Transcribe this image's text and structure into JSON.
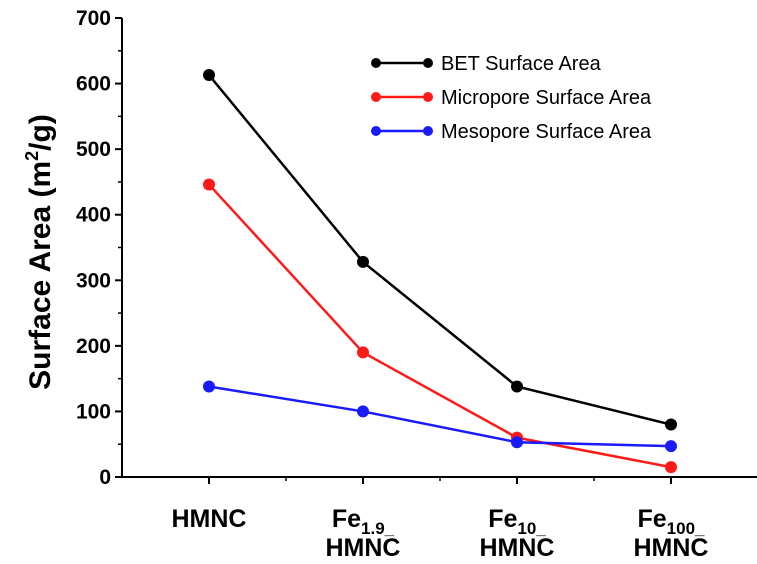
{
  "chart_data": {
    "type": "line",
    "categories": [
      {
        "main": "HMNC",
        "sub": "",
        "line2": ""
      },
      {
        "main": "Fe",
        "sub": "1.9_",
        "line2": "HMNC"
      },
      {
        "main": "Fe",
        "sub": "10_",
        "line2": "HMNC"
      },
      {
        "main": "Fe",
        "sub": "100_",
        "line2": "HMNC"
      }
    ],
    "series": [
      {
        "name": "BET Surface Area",
        "color": "#000000",
        "values": [
          613,
          328,
          138,
          80
        ]
      },
      {
        "name": "Micropore Surface Area",
        "color": "#ff1a1a",
        "values": [
          446,
          190,
          60,
          15
        ]
      },
      {
        "name": "Mesopore Surface Area",
        "color": "#1a1aff",
        "values": [
          138,
          100,
          53,
          47
        ]
      }
    ],
    "ylabel": {
      "main": "Surface Area (m",
      "sup": "2",
      "tail": "/g)"
    },
    "xlabel": "",
    "ylim": [
      0,
      700
    ],
    "yticks": [
      0,
      100,
      200,
      300,
      400,
      500,
      600,
      700
    ],
    "grid": false,
    "legend": "top-right"
  }
}
